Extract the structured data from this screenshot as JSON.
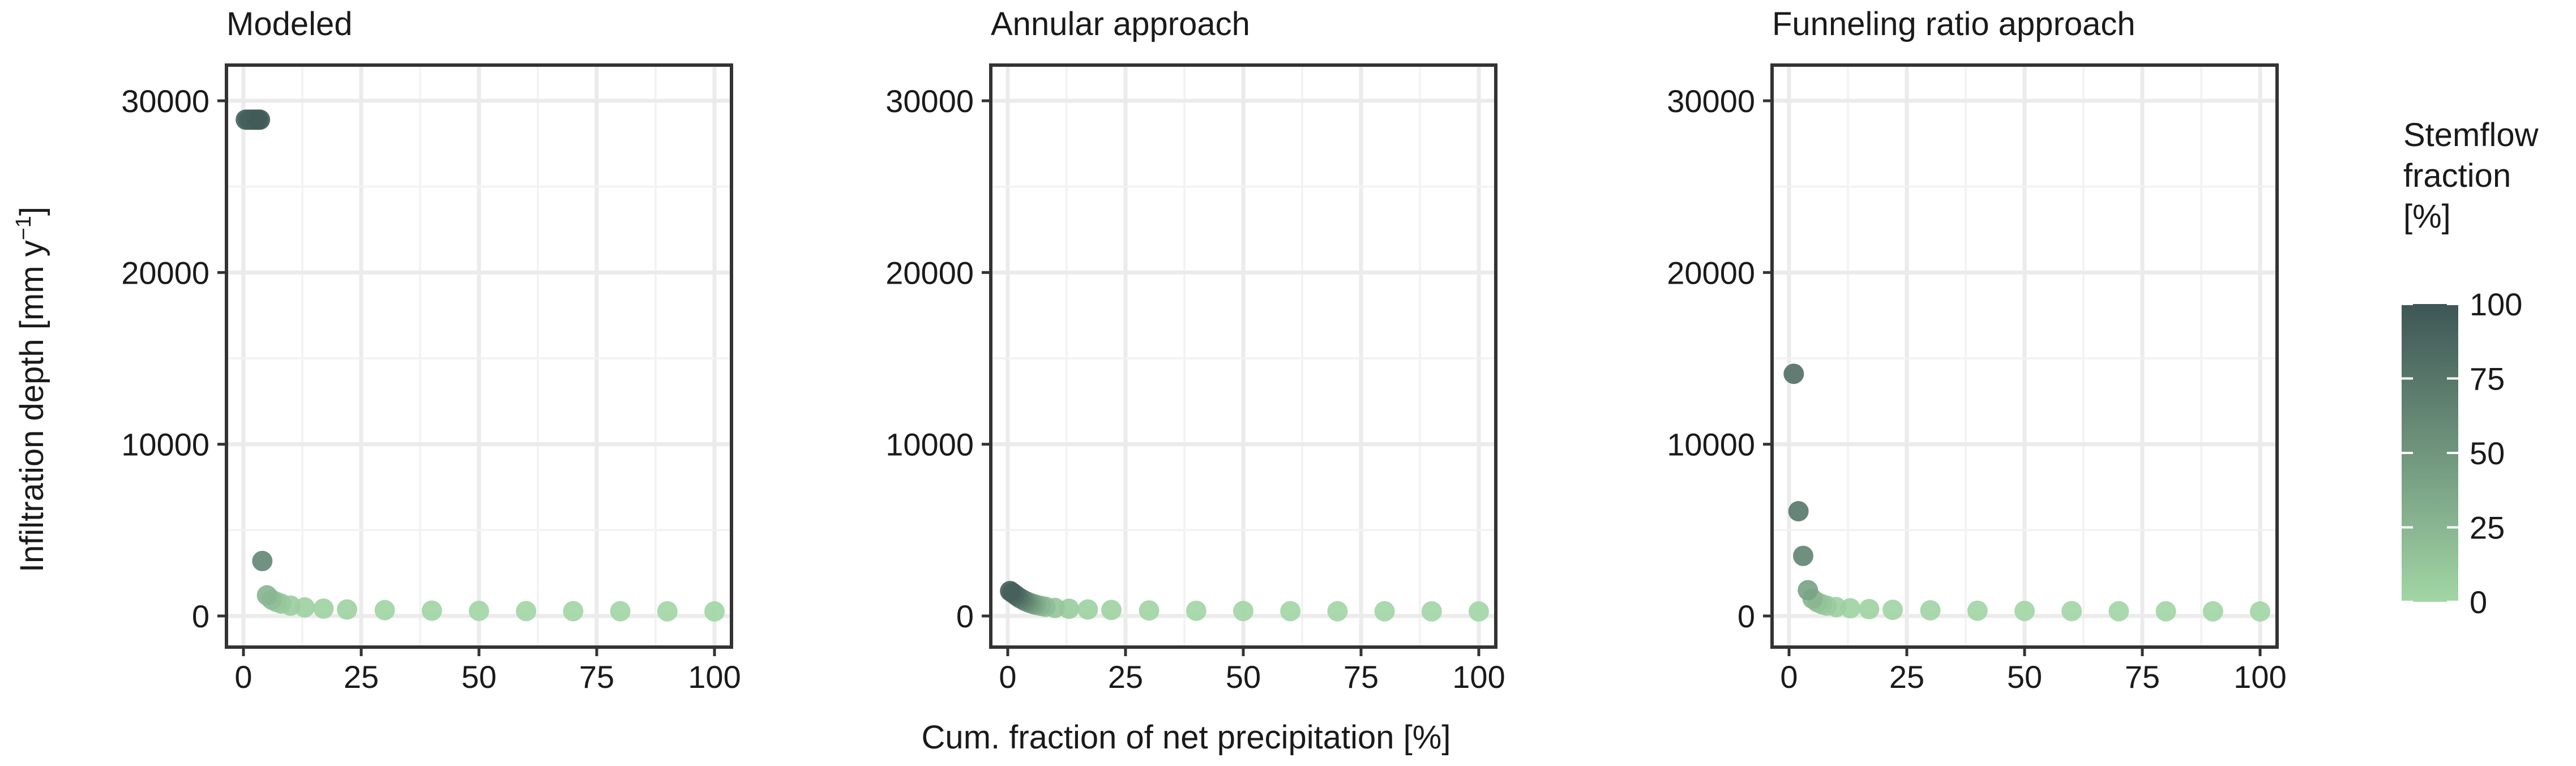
{
  "figure": {
    "y_label": "Infiltration depth [mm y",
    "y_label_sup": "−1",
    "y_label_close": "]",
    "x_label": "Cum. fraction of net precipitation [%]"
  },
  "legend": {
    "title_lines": [
      "Stemflow",
      "fraction",
      "[%]"
    ],
    "ticks": [
      0,
      25,
      50,
      75,
      100
    ],
    "color_low": "#a2d6a5",
    "color_high": "#3e5656"
  },
  "chart_data": [
    {
      "type": "scatter",
      "title": "Modeled",
      "xlim": [
        0,
        100
      ],
      "ylim": [
        0,
        30000
      ],
      "x_ticks": [
        0,
        25,
        50,
        75,
        100
      ],
      "y_ticks": [
        0,
        10000,
        20000,
        30000
      ],
      "grid": true,
      "points": [
        {
          "x": 0.5,
          "y": 28900,
          "c": 88
        },
        {
          "x": 1.0,
          "y": 28900,
          "c": 90
        },
        {
          "x": 1.5,
          "y": 28900,
          "c": 92
        },
        {
          "x": 2.0,
          "y": 28900,
          "c": 93
        },
        {
          "x": 2.5,
          "y": 28900,
          "c": 94
        },
        {
          "x": 3.0,
          "y": 28900,
          "c": 95
        },
        {
          "x": 3.5,
          "y": 28900,
          "c": 96
        },
        {
          "x": 4.0,
          "y": 3200,
          "c": 60
        },
        {
          "x": 5.0,
          "y": 1200,
          "c": 25
        },
        {
          "x": 6.0,
          "y": 950,
          "c": 18
        },
        {
          "x": 7.0,
          "y": 820,
          "c": 12
        },
        {
          "x": 8.0,
          "y": 720,
          "c": 9
        },
        {
          "x": 10.0,
          "y": 600,
          "c": 6
        },
        {
          "x": 13.0,
          "y": 500,
          "c": 4
        },
        {
          "x": 17.0,
          "y": 430,
          "c": 3
        },
        {
          "x": 22.0,
          "y": 380,
          "c": 2
        },
        {
          "x": 30.0,
          "y": 340,
          "c": 1
        },
        {
          "x": 40.0,
          "y": 310,
          "c": 1
        },
        {
          "x": 50.0,
          "y": 295,
          "c": 0
        },
        {
          "x": 60.0,
          "y": 285,
          "c": 0
        },
        {
          "x": 70.0,
          "y": 280,
          "c": 0
        },
        {
          "x": 80.0,
          "y": 275,
          "c": 0
        },
        {
          "x": 90.0,
          "y": 270,
          "c": 0
        },
        {
          "x": 100.0,
          "y": 265,
          "c": 0
        }
      ]
    },
    {
      "type": "scatter",
      "title": "Annular approach",
      "xlim": [
        0,
        100
      ],
      "ylim": [
        0,
        30000
      ],
      "x_ticks": [
        0,
        25,
        50,
        75,
        100
      ],
      "y_ticks": [
        0,
        10000,
        20000,
        30000
      ],
      "grid": true,
      "points": [
        {
          "x": 0.5,
          "y": 1450,
          "c": 92
        },
        {
          "x": 1.0,
          "y": 1350,
          "c": 88
        },
        {
          "x": 1.5,
          "y": 1250,
          "c": 84
        },
        {
          "x": 2.0,
          "y": 1150,
          "c": 78
        },
        {
          "x": 2.5,
          "y": 1050,
          "c": 72
        },
        {
          "x": 3.0,
          "y": 980,
          "c": 66
        },
        {
          "x": 3.5,
          "y": 900,
          "c": 60
        },
        {
          "x": 4.0,
          "y": 840,
          "c": 54
        },
        {
          "x": 4.5,
          "y": 780,
          "c": 48
        },
        {
          "x": 5.0,
          "y": 730,
          "c": 42
        },
        {
          "x": 5.5,
          "y": 690,
          "c": 37
        },
        {
          "x": 6.0,
          "y": 650,
          "c": 32
        },
        {
          "x": 7.0,
          "y": 590,
          "c": 25
        },
        {
          "x": 8.0,
          "y": 540,
          "c": 19
        },
        {
          "x": 10.0,
          "y": 470,
          "c": 12
        },
        {
          "x": 13.0,
          "y": 420,
          "c": 7
        },
        {
          "x": 17.0,
          "y": 380,
          "c": 4
        },
        {
          "x": 22.0,
          "y": 350,
          "c": 2
        },
        {
          "x": 30.0,
          "y": 320,
          "c": 1
        },
        {
          "x": 40.0,
          "y": 300,
          "c": 0
        },
        {
          "x": 50.0,
          "y": 290,
          "c": 0
        },
        {
          "x": 60.0,
          "y": 282,
          "c": 0
        },
        {
          "x": 70.0,
          "y": 276,
          "c": 0
        },
        {
          "x": 80.0,
          "y": 272,
          "c": 0
        },
        {
          "x": 90.0,
          "y": 268,
          "c": 0
        },
        {
          "x": 100.0,
          "y": 265,
          "c": 0
        }
      ]
    },
    {
      "type": "scatter",
      "title": "Funneling ratio approach",
      "xlim": [
        0,
        100
      ],
      "ylim": [
        0,
        30000
      ],
      "x_ticks": [
        0,
        25,
        50,
        75,
        100
      ],
      "y_ticks": [
        0,
        10000,
        20000,
        30000
      ],
      "grid": true,
      "points": [
        {
          "x": 1.0,
          "y": 14100,
          "c": 78
        },
        {
          "x": 2.0,
          "y": 6100,
          "c": 72
        },
        {
          "x": 3.0,
          "y": 3500,
          "c": 62
        },
        {
          "x": 4.0,
          "y": 1500,
          "c": 40
        },
        {
          "x": 5.0,
          "y": 1000,
          "c": 25
        },
        {
          "x": 6.0,
          "y": 800,
          "c": 16
        },
        {
          "x": 7.0,
          "y": 680,
          "c": 11
        },
        {
          "x": 8.0,
          "y": 600,
          "c": 8
        },
        {
          "x": 10.0,
          "y": 520,
          "c": 5
        },
        {
          "x": 13.0,
          "y": 450,
          "c": 3
        },
        {
          "x": 17.0,
          "y": 400,
          "c": 2
        },
        {
          "x": 22.0,
          "y": 360,
          "c": 1
        },
        {
          "x": 30.0,
          "y": 330,
          "c": 1
        },
        {
          "x": 40.0,
          "y": 305,
          "c": 0
        },
        {
          "x": 50.0,
          "y": 292,
          "c": 0
        },
        {
          "x": 60.0,
          "y": 284,
          "c": 0
        },
        {
          "x": 70.0,
          "y": 278,
          "c": 0
        },
        {
          "x": 80.0,
          "y": 273,
          "c": 0
        },
        {
          "x": 90.0,
          "y": 269,
          "c": 0
        },
        {
          "x": 100.0,
          "y": 265,
          "c": 0
        }
      ]
    }
  ]
}
